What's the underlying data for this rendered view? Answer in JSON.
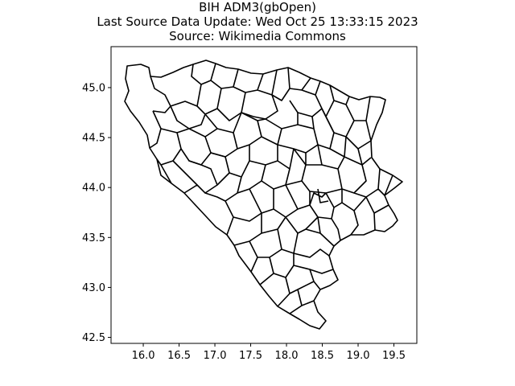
{
  "figure": {
    "title_lines": [
      "BIH ADM3(gbOpen)",
      "Last Source Data Update: Wed Oct 25 13:33:15 2023",
      "Source: Wikimedia Commons"
    ]
  },
  "chart_data": {
    "type": "map",
    "xlim": [
      15.55,
      19.82
    ],
    "ylim": [
      42.44,
      45.41
    ],
    "x_ticks": [
      {
        "value": 16.0,
        "label": "16.0"
      },
      {
        "value": 16.5,
        "label": "16.5"
      },
      {
        "value": 17.0,
        "label": "17.0"
      },
      {
        "value": 17.5,
        "label": "17.5"
      },
      {
        "value": 18.0,
        "label": "18.0"
      },
      {
        "value": 18.5,
        "label": "18.5"
      },
      {
        "value": 19.0,
        "label": "19.0"
      },
      {
        "value": 19.5,
        "label": "19.5"
      }
    ],
    "y_ticks": [
      {
        "value": 42.5,
        "label": "42.5"
      },
      {
        "value": 43.0,
        "label": "43.0"
      },
      {
        "value": 43.5,
        "label": "43.5"
      },
      {
        "value": 44.0,
        "label": "44.0"
      },
      {
        "value": 44.5,
        "label": "44.5"
      },
      {
        "value": 45.0,
        "label": "45.0"
      }
    ],
    "grid": false,
    "colors": {
      "outline": "#000000",
      "fill": "#ffffff"
    }
  }
}
